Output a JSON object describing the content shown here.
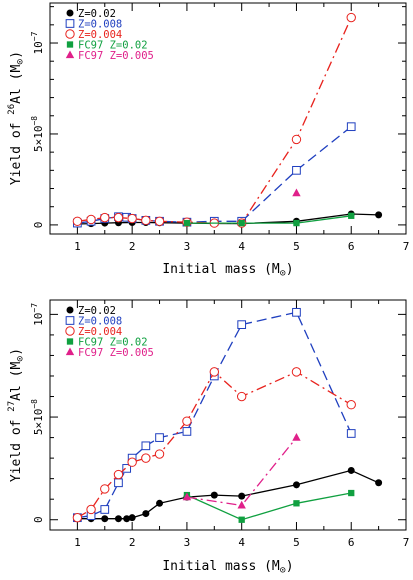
{
  "chart_data": [
    {
      "type": "line",
      "panel": "top",
      "xlabel": "Initial mass (M",
      "ylabel": "Yield of ",
      "ylabel_sup": "26",
      "ylabel_element": "Al (M",
      "sun_symbol": "⊙",
      "x_ticks": [
        "1",
        "2",
        "3",
        "4",
        "5",
        "6",
        "7"
      ],
      "y_tick_labels": {
        "zero": "0",
        "mid": "5×10",
        "mid_exp": "−8",
        "top": "10",
        "top_exp": "−7"
      },
      "xlim": [
        0.5,
        7.0
      ],
      "ylim": [
        -5e-09,
        1.22e-07
      ],
      "legend_position": "top-left",
      "series": [
        {
          "name": "Z=0.02",
          "color": "#000000",
          "marker": "filled-circle",
          "line": "solid",
          "x": [
            1,
            1.25,
            1.5,
            1.75,
            2,
            2.25,
            2.5,
            3,
            3.5,
            4,
            5,
            6,
            6.5
          ],
          "y": [
            5e-10,
            7e-10,
            1e-09,
            1.2e-09,
            1.3e-09,
            1.3e-09,
            1.2e-09,
            1e-09,
            8e-10,
            7e-10,
            2e-09,
            6e-09,
            5.5e-09
          ]
        },
        {
          "name": "Z=0.008",
          "color": "#1f3fbf",
          "marker": "open-square",
          "line": "dashed",
          "x": [
            1,
            1.25,
            1.5,
            1.75,
            1.9,
            2,
            2.25,
            2.5,
            3,
            3.5,
            4,
            5,
            6
          ],
          "y": [
            1e-09,
            2e-09,
            3.5e-09,
            4.5e-09,
            4.2e-09,
            3.5e-09,
            2.5e-09,
            2e-09,
            1.5e-09,
            2e-09,
            2e-09,
            3e-08,
            5.4e-08
          ]
        },
        {
          "name": "Z=0.004",
          "color": "#e8231e",
          "marker": "open-circle",
          "line": "dashdot",
          "x": [
            1,
            1.25,
            1.5,
            1.75,
            2,
            2.25,
            2.5,
            3,
            3.5,
            4,
            5,
            6
          ],
          "y": [
            2e-09,
            3e-09,
            4e-09,
            4e-09,
            3.5e-09,
            2.5e-09,
            2e-09,
            1.5e-09,
            1e-09,
            1e-09,
            4.7e-08,
            1.14e-07
          ]
        },
        {
          "name": "FC97  Z=0.02",
          "color": "#10a040",
          "marker": "filled-square",
          "line": "solid",
          "x": [
            3,
            4,
            5,
            6
          ],
          "y": [
            1e-09,
            1e-09,
            1e-09,
            5e-09
          ]
        },
        {
          "name": "FC97  Z=0.005",
          "color": "#e0208a",
          "marker": "filled-triangle",
          "line": "dashdot",
          "x": [
            5
          ],
          "y": [
            1.75e-08
          ]
        }
      ]
    },
    {
      "type": "line",
      "panel": "bottom",
      "xlabel": "Initial mass (M",
      "ylabel": "Yield of ",
      "ylabel_sup": "27",
      "ylabel_element": "Al (M",
      "sun_symbol": "⊙",
      "x_ticks": [
        "1",
        "2",
        "3",
        "4",
        "5",
        "6",
        "7"
      ],
      "y_tick_labels": {
        "zero": "0",
        "mid": "5×10",
        "mid_exp": "−8",
        "top": "10",
        "top_exp": "−7"
      },
      "xlim": [
        0.5,
        7.0
      ],
      "ylim": [
        -5e-09,
        1.07e-07
      ],
      "legend_position": "top-left",
      "series": [
        {
          "name": "Z=0.02",
          "color": "#000000",
          "marker": "filled-circle",
          "line": "solid",
          "x": [
            1,
            1.25,
            1.5,
            1.75,
            1.9,
            2,
            2.25,
            2.5,
            3,
            3.5,
            4,
            5,
            6,
            6.5
          ],
          "y": [
            5e-10,
            5e-10,
            5e-10,
            5e-10,
            5e-10,
            1e-09,
            3e-09,
            8e-09,
            1.1e-08,
            1.2e-08,
            1.15e-08,
            1.7e-08,
            2.4e-08,
            1.8e-08
          ]
        },
        {
          "name": "Z=0.008",
          "color": "#1f3fbf",
          "marker": "open-square",
          "line": "dashed",
          "x": [
            1,
            1.25,
            1.5,
            1.75,
            1.9,
            2,
            2.25,
            2.5,
            3,
            3.5,
            4,
            5,
            6
          ],
          "y": [
            1e-09,
            2e-09,
            5e-09,
            1.8e-08,
            2.5e-08,
            3e-08,
            3.6e-08,
            4e-08,
            4.3e-08,
            7e-08,
            9.5e-08,
            1.01e-07,
            4.2e-08
          ]
        },
        {
          "name": "Z=0.004",
          "color": "#e8231e",
          "marker": "open-circle",
          "line": "dashdot",
          "x": [
            1,
            1.25,
            1.5,
            1.75,
            2,
            2.25,
            2.5,
            3,
            3.5,
            4,
            5,
            6
          ],
          "y": [
            1e-09,
            5e-09,
            1.5e-08,
            2.2e-08,
            2.8e-08,
            3e-08,
            3.2e-08,
            4.8e-08,
            7.2e-08,
            6e-08,
            7.2e-08,
            5.6e-08
          ]
        },
        {
          "name": "FC97  Z=0.02",
          "color": "#10a040",
          "marker": "filled-square",
          "line": "solid",
          "x": [
            3,
            4,
            5,
            6
          ],
          "y": [
            1.2e-08,
            0.0,
            8e-09,
            1.3e-08
          ]
        },
        {
          "name": "FC97  Z=0.005",
          "color": "#e0208a",
          "marker": "filled-triangle",
          "line": "dashdot",
          "x": [
            3,
            4,
            5
          ],
          "y": [
            1.1e-08,
            7e-09,
            4e-08
          ]
        }
      ]
    }
  ]
}
